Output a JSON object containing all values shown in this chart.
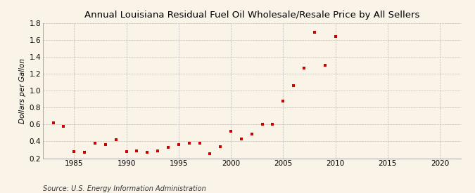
{
  "title": "Annual Louisiana Residual Fuel Oil Wholesale/Resale Price by All Sellers",
  "ylabel": "Dollars per Gallon",
  "source": "Source: U.S. Energy Information Administration",
  "background_color": "#faf3e8",
  "plot_bg_color": "#faf3e8",
  "marker_color": "#cc0000",
  "grid_color": "#bbbbbb",
  "spine_color": "#999999",
  "xlim": [
    1982,
    2022
  ],
  "ylim": [
    0.2,
    1.8
  ],
  "xticks": [
    1985,
    1990,
    1995,
    2000,
    2005,
    2010,
    2015,
    2020
  ],
  "yticks": [
    0.2,
    0.4,
    0.6,
    0.8,
    1.0,
    1.2,
    1.4,
    1.6,
    1.8
  ],
  "years": [
    1983,
    1984,
    1985,
    1986,
    1987,
    1988,
    1989,
    1990,
    1991,
    1992,
    1993,
    1994,
    1995,
    1996,
    1997,
    1998,
    1999,
    2000,
    2001,
    2002,
    2003,
    2004,
    2005,
    2006,
    2007,
    2008,
    2009,
    2010
  ],
  "values": [
    0.62,
    0.58,
    0.28,
    0.27,
    0.38,
    0.36,
    0.42,
    0.28,
    0.29,
    0.27,
    0.29,
    0.33,
    0.36,
    0.38,
    0.38,
    0.25,
    0.34,
    0.52,
    0.43,
    0.49,
    0.6,
    0.6,
    0.88,
    1.06,
    1.27,
    1.69,
    1.3,
    1.64
  ],
  "title_fontsize": 9.5,
  "ylabel_fontsize": 7.5,
  "tick_fontsize": 7.5,
  "source_fontsize": 7
}
